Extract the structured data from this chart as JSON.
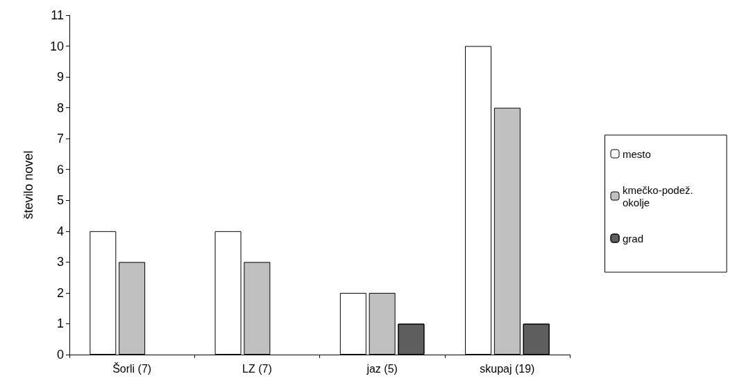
{
  "chart_data": {
    "type": "bar",
    "ylabel": "število novel",
    "categories": [
      "Šorli (7)",
      "LZ (7)",
      "jaz (5)",
      "skupaj (19)"
    ],
    "series": [
      {
        "name": "mesto",
        "color": "#ffffff",
        "values": [
          4,
          4,
          2,
          10
        ]
      },
      {
        "name": "kmečko-podež. okolje",
        "color": "#c0c0c0",
        "values": [
          3,
          3,
          2,
          8
        ]
      },
      {
        "name": "grad",
        "color": "#d0d0d0",
        "values": [
          null,
          null,
          1,
          1
        ]
      }
    ],
    "ylim": [
      0,
      11
    ],
    "yticks": [
      0,
      1,
      2,
      3,
      4,
      5,
      6,
      7,
      8,
      9,
      10,
      11
    ],
    "grid": false,
    "legend": "right"
  }
}
